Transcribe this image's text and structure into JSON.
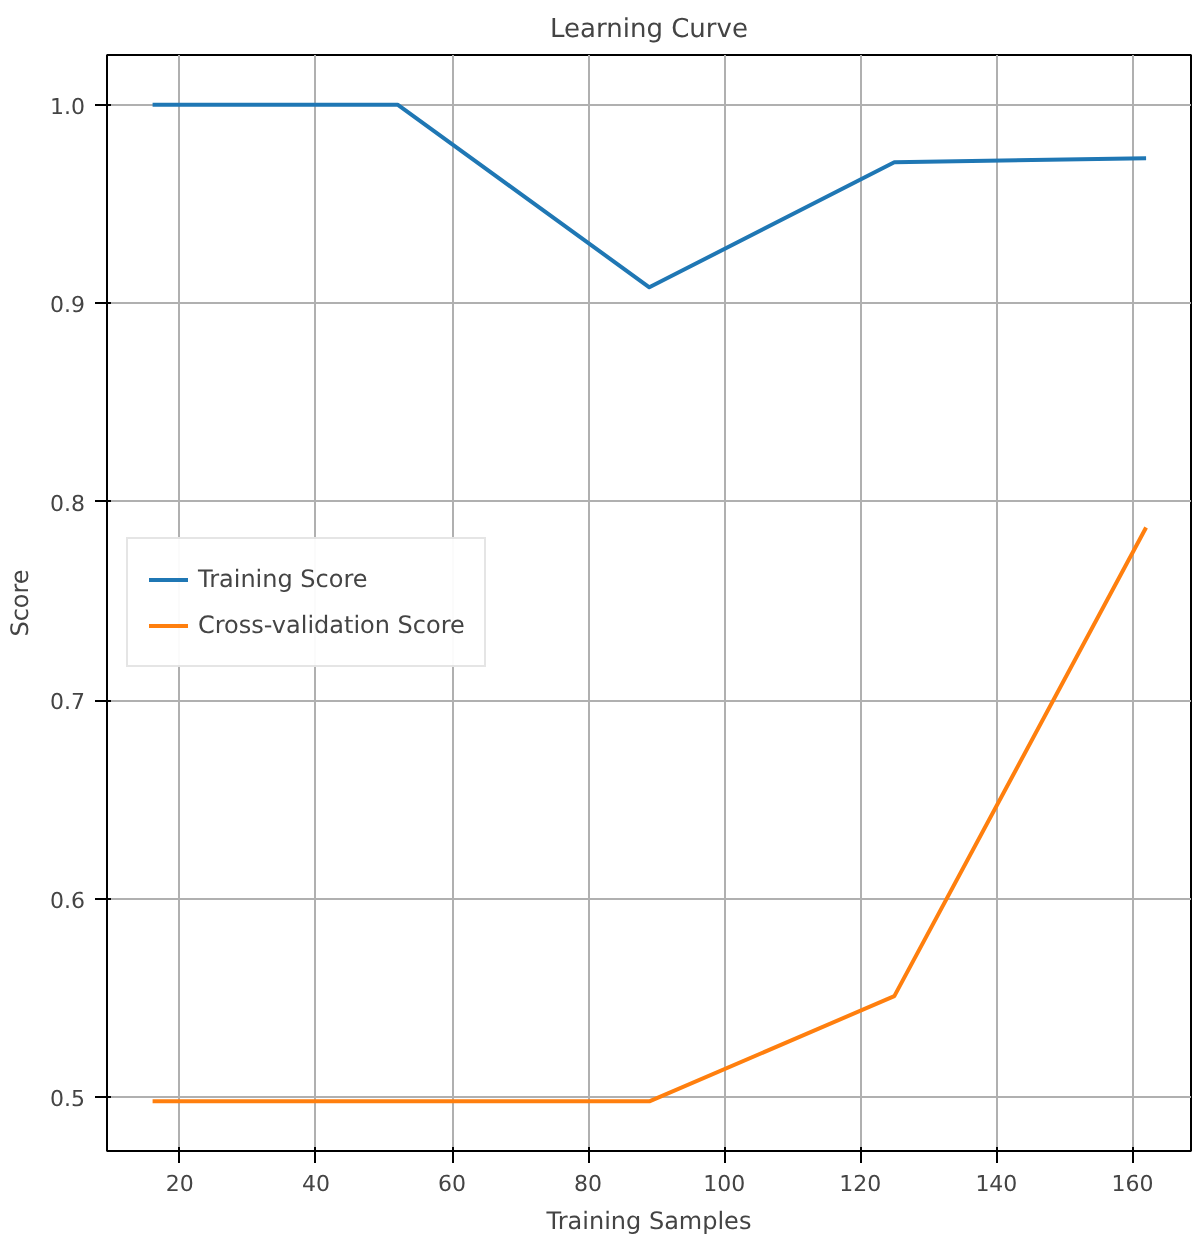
{
  "chart_data": {
    "type": "line",
    "title": "Learning Curve",
    "xlabel": "Training Samples",
    "ylabel": "Score",
    "x": [
      16,
      52,
      89,
      125,
      162
    ],
    "series": [
      {
        "name": "Training Score",
        "color": "#1f77b4",
        "values": [
          1.0,
          1.0,
          0.908,
          0.971,
          0.973
        ]
      },
      {
        "name": "Cross-validation Score",
        "color": "#ff7f0e",
        "values": [
          0.498,
          0.498,
          0.498,
          0.551,
          0.787
        ]
      }
    ],
    "xlim": [
      9.3,
      168.6
    ],
    "ylim": [
      0.473,
      1.025
    ],
    "xticks": [
      20,
      40,
      60,
      80,
      100,
      120,
      140,
      160
    ],
    "yticks": [
      {
        "value": 0.5,
        "label": "0.5"
      },
      {
        "value": 0.6,
        "label": "0.6"
      },
      {
        "value": 0.7,
        "label": "0.7"
      },
      {
        "value": 0.8,
        "label": "0.8"
      },
      {
        "value": 0.9,
        "label": "0.9"
      },
      {
        "value": 1.0,
        "label": "1.0"
      }
    ],
    "grid": true,
    "legend": "center left"
  }
}
